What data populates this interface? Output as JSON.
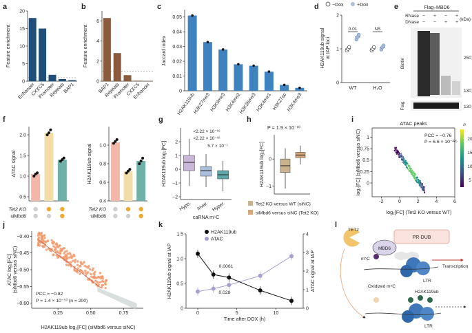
{
  "colors": {
    "navy": "#1f4e79",
    "brown": "#8c5a3c",
    "steel": "#3f82c0",
    "pink": "#f4b6a8",
    "cream": "#f2dca8",
    "teal": "#6fb1a8",
    "lav": "#c9b6d9",
    "blue2": "#a9bfdc",
    "teal2": "#5fa7a9",
    "orange": "#f29a6c",
    "lilac": "#a99ed1",
    "gold": "#f0a830"
  },
  "panels": {
    "a": "a",
    "b": "b",
    "c": "c",
    "d": "d",
    "e": "e",
    "f": "f",
    "g": "g",
    "h": "h",
    "i": "i",
    "j": "j",
    "k": "k",
    "l": "l"
  },
  "chart_data": [
    {
      "id": "a",
      "type": "bar",
      "ylabel": "Feature enrichment",
      "ylim": [
        0,
        20
      ],
      "yticks": [
        "0",
        "5",
        "10",
        "15",
        "20"
      ],
      "categories": [
        "Enhancer",
        "CXXC5",
        "Promoter",
        "Repeats",
        "BAP1"
      ],
      "values": [
        18,
        15,
        1.8,
        0.6,
        0.3
      ],
      "ref_line": 1
    },
    {
      "id": "b",
      "type": "bar",
      "ylabel": "Feature enrichment",
      "ylim": [
        0,
        7
      ],
      "yticks": [
        "0",
        "2",
        "4",
        "6"
      ],
      "categories": [
        "BAP1",
        "Repeats",
        "Promoter",
        "CXXC5",
        "Enhancer"
      ],
      "values": [
        6.3,
        2.8,
        0.6,
        0.05,
        0.03
      ],
      "ref_line": 1
    },
    {
      "id": "c",
      "type": "bar",
      "ylabel": "Jaccard index",
      "ylim": [
        0,
        0.055
      ],
      "yticks": [
        "0",
        "0.01",
        "0.02",
        "0.03",
        "0.04",
        "0.05"
      ],
      "categories": [
        "H2AK119ub",
        "H3K27me3",
        "H3K9me3",
        "H3K4me2",
        "H3K36me3",
        "H3K4me1",
        "H3K27ac",
        "H3K4me3"
      ],
      "values": [
        0.051,
        0.033,
        0.028,
        0.018,
        0.017,
        0.013,
        0.004,
        0.002
      ]
    },
    {
      "id": "d",
      "type": "scatter",
      "ylabel": "H2AK119ub signal\nat IAP loci",
      "ylim": [
        0,
        2
      ],
      "yticks": [
        "0",
        "1",
        "2"
      ],
      "groups": [
        "WT",
        "H₂O"
      ],
      "legend": [
        "−Dox",
        "+Dox"
      ],
      "points": {
        "WT_minus": [
          0.95,
          1.0,
          1.05
        ],
        "WT_plus": [
          1.28,
          1.35,
          1.42
        ],
        "H2O_minus": [
          0.95,
          1.0,
          1.05
        ],
        "H2O_plus": [
          0.98,
          1.05,
          1.1
        ]
      },
      "pvalues": [
        "0.01",
        "NS"
      ]
    },
    {
      "id": "f1",
      "type": "bar",
      "ylabel": "ATAC signal",
      "ylim": [
        0.4,
        2.2
      ],
      "yticks": [
        "0.5",
        "1.0",
        "1.5",
        "2.0"
      ],
      "values": [
        1.05,
        2.05,
        1.4
      ],
      "points": [
        [
          1.0,
          1.05,
          1.08
        ],
        [
          2.0,
          2.05,
          2.12
        ],
        [
          1.36,
          1.4,
          1.44
        ]
      ],
      "rows": [
        "Tet2 KO",
        "siMbd6"
      ],
      "dots_on": [
        [
          false,
          true,
          true
        ],
        [
          false,
          false,
          true
        ]
      ]
    },
    {
      "id": "f2",
      "type": "bar",
      "ylabel": "H2AK119ub signal",
      "ylim": [
        0.4,
        1.2
      ],
      "yticks": [
        "0.4",
        "0.6",
        "0.8",
        "1.0"
      ],
      "values": [
        1.03,
        0.72,
        0.83
      ],
      "points": [
        [
          1.02,
          1.04,
          1.06
        ],
        [
          0.7,
          0.72,
          0.74
        ],
        [
          0.8,
          0.83,
          0.86
        ]
      ],
      "rows": [
        "Tet2 KO",
        "siMbd6"
      ],
      "dots_on": [
        [
          false,
          true,
          true
        ],
        [
          false,
          false,
          true
        ]
      ]
    },
    {
      "id": "g",
      "type": "box",
      "ylabel": "H2AK119ub log₂[FC]",
      "ylim": [
        -2.2,
        3
      ],
      "yticks": [
        "−2",
        "−1",
        "0",
        "1",
        "2"
      ],
      "categories": [
        "Hypo.",
        "Invar.",
        "Hyper."
      ],
      "xlabel": "caRNA m⁵C",
      "boxes": [
        [
          -1.2,
          -0.1,
          0.5,
          1.0,
          2.2
        ],
        [
          -1.3,
          -0.5,
          -0.1,
          0.2,
          1.1
        ],
        [
          -1.6,
          -0.7,
          -0.4,
          -0.1,
          0.6
        ]
      ],
      "pvalues": [
        "<2.22 × 10⁻¹⁶",
        "<2.22 × 10⁻¹⁶",
        "5.7 × 10⁻⁷"
      ]
    },
    {
      "id": "h",
      "type": "box",
      "ylabel": "H2AK119ub log₂[FC]",
      "ylim": [
        -1.3,
        0.9
      ],
      "yticks": [
        "−1",
        "0"
      ],
      "ptitle": "P = 1.9 × 10⁻¹⁰",
      "boxes": [
        [
          -1.1,
          -0.5,
          -0.25,
          0.0,
          0.4
        ],
        [
          -0.2,
          0.05,
          0.15,
          0.25,
          0.5
        ]
      ],
      "legend": [
        "Tet2 KO versus WT (siNC)",
        "siMbd6 versus siNC (Tet2 KO)"
      ]
    },
    {
      "id": "i",
      "type": "scatter",
      "title": "ATAC peaks",
      "ylabel": "log₂[FC] (siMbd6 versus siNC)",
      "xlabel": "log₂[FC] (Tet2 KO versus WT)",
      "xlim": [
        -3,
        6
      ],
      "ylim": [
        -0.3,
        1.2
      ],
      "xticks": [
        -2,
        0,
        2,
        4,
        6
      ],
      "yticks": [
        0,
        0.25,
        0.5,
        0.75,
        1.0
      ],
      "annot": [
        "PCC = −0.76",
        "P = 6.6 × 10⁻²²⁵"
      ],
      "colorbar": {
        "label": "n",
        "ticks": [
          "5",
          "10",
          "15",
          "20"
        ]
      }
    },
    {
      "id": "j",
      "type": "scatter",
      "ylabel": "ATAC log₂[FC]\n(siMbd6 versus siNC)",
      "xlabel": "H2AK119ub log₂[FC] (siMbd6 versus siNC)",
      "xlim": [
        0.05,
        0.9
      ],
      "ylim": [
        -0.615,
        -0.385
      ],
      "xticks": [
        "0.25",
        "0.50",
        "0.75"
      ],
      "yticks": [
        "−0.60",
        "−0.55",
        "−0.50",
        "−0.45",
        "−0.40"
      ],
      "annot": [
        "PCC = −0.82",
        "P = 1.4 × 10⁻⁵⁰ (n = 200)"
      ]
    },
    {
      "id": "k",
      "type": "line",
      "xlabel": "Time after DOX (h)",
      "ylabel": "H2AK119ub signal at IAP",
      "ylabel2": "ATAC signal at IAP",
      "xlim": [
        -1.5,
        13.5
      ],
      "xticks": [
        0,
        5,
        10
      ],
      "series": [
        {
          "name": "H2AK119ub",
          "x": [
            0,
            2,
            4,
            8,
            12
          ],
          "y": [
            1.1,
            0.68,
            0.62,
            0.36,
            0.15
          ]
        },
        {
          "name": "ATAC",
          "x": [
            0,
            2,
            4,
            8,
            12
          ],
          "y2": [
            0.9,
            1.05,
            1.25,
            1.75,
            2.8
          ]
        }
      ],
      "ylim": [
        0,
        1.5
      ],
      "ylim2": [
        0,
        4
      ],
      "yticks": [
        "0",
        "0.5",
        "1.0",
        "1.5"
      ],
      "yticks2": [
        "0",
        "1",
        "2",
        "3",
        "4"
      ],
      "pvalues": [
        "0.0061",
        "0.028"
      ]
    }
  ],
  "blot": {
    "title": "Flag–MBD6",
    "rnase": "RNase",
    "dnase": "DNase",
    "rnase_signs": [
      "−",
      "+",
      "−",
      "+"
    ],
    "dnase_signs": [
      "−",
      "−",
      "+",
      "+"
    ],
    "biotin": "Biotin",
    "flag": "Flag",
    "kda": "(kDa)",
    "mw": [
      "250",
      "130",
      "130"
    ]
  },
  "model": {
    "prdub": "PR-DUB",
    "mbd6": "MBD6",
    "tet2": "TET2",
    "m5c": "m⁵C",
    "oxidized": "Oxidized\nm⁵C",
    "mark": "H2AK119ub",
    "ltr": "LTR",
    "transcription": "Transcription"
  }
}
